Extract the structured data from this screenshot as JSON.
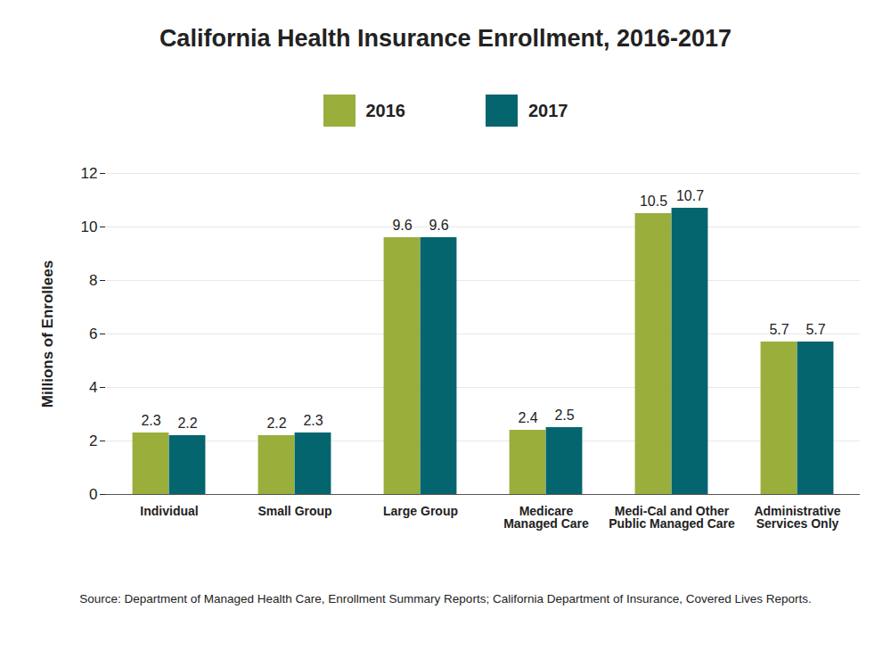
{
  "chart_data": {
    "type": "bar",
    "title": "California Health Insurance Enrollment, 2016-2017",
    "ylabel": "Millions of Enrollees",
    "caption": "Source:  Department of Managed Health Care, Enrollment Summary Reports; California Department of Insurance, Covered Lives Reports.",
    "categories": [
      "Individual",
      "Small Group",
      "Large Group",
      "Medicare\nManaged Care",
      "Medi-Cal and Other\nPublic Managed Care",
      "Administrative\nServices Only"
    ],
    "series": [
      {
        "name": "2016",
        "color": "#9aae3b",
        "values": [
          2.3,
          2.2,
          9.6,
          2.4,
          10.5,
          5.7
        ]
      },
      {
        "name": "2017",
        "color": "#04656f",
        "values": [
          2.2,
          2.3,
          9.6,
          2.5,
          10.7,
          5.7
        ]
      }
    ],
    "ylim": [
      0,
      12
    ],
    "yticks": [
      0,
      2,
      4,
      6,
      8,
      10,
      12
    ],
    "grid": true,
    "legend": "top",
    "data_labels": true
  }
}
